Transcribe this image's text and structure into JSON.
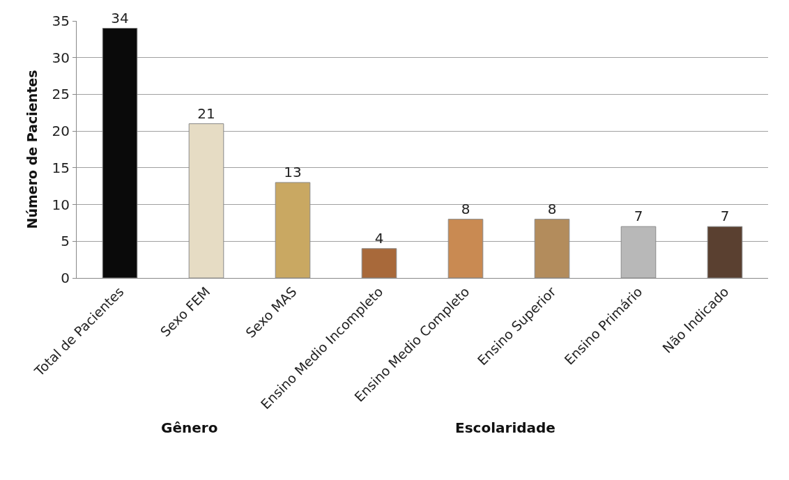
{
  "chart_data": {
    "type": "bar",
    "ylabel": "Número de Pacientes",
    "categories": [
      "Total de Pacientes",
      "Sexo FEM",
      "Sexo MAS",
      "Ensino Medio Incompleto",
      "Ensino Medio Completo",
      "Ensino Superior",
      "Ensino Primário",
      "Não Indicado"
    ],
    "values": [
      34,
      21,
      13,
      4,
      8,
      8,
      7,
      7
    ],
    "colors": [
      "#0a0a0a",
      "#e6dcc4",
      "#c9a862",
      "#a8693a",
      "#c98a52",
      "#b38c5c",
      "#b8b8b8",
      "#5a4030"
    ],
    "ylim": [
      0,
      35
    ],
    "yticks": [
      0,
      5,
      10,
      15,
      20,
      25,
      30,
      35
    ],
    "grid": "y",
    "data_labels": true,
    "legend": false,
    "annotations": [
      "Gênero",
      "Escolaridade"
    ]
  }
}
